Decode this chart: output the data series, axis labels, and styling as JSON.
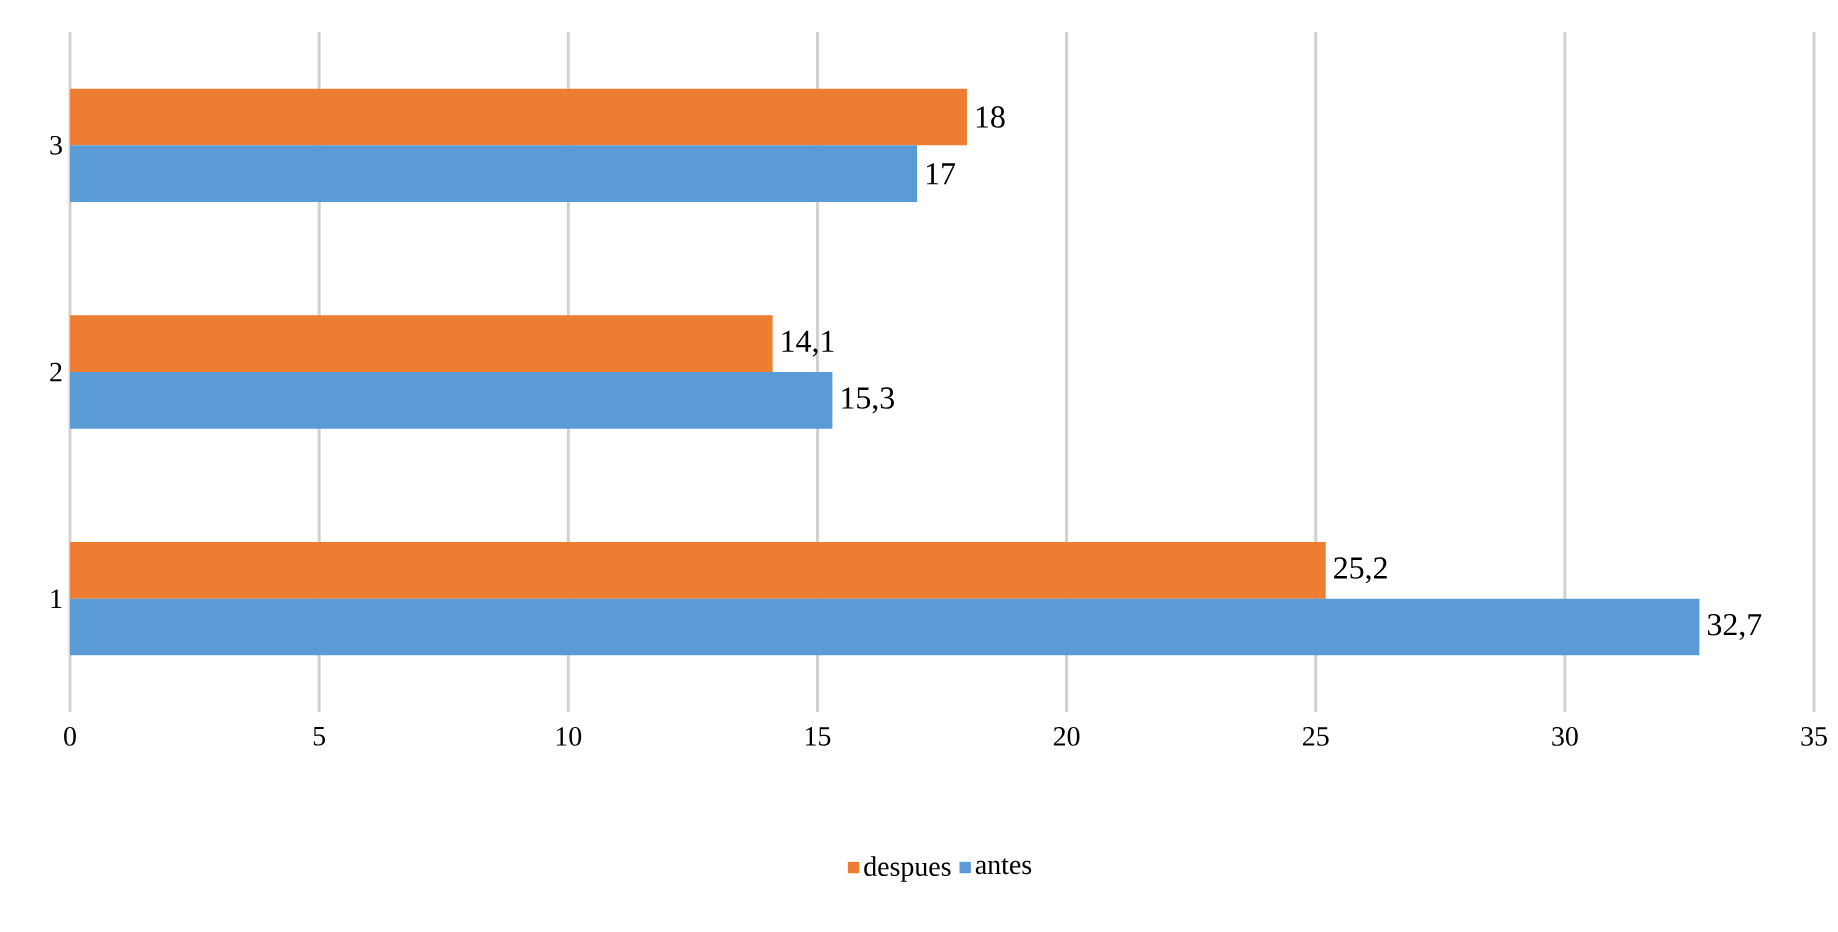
{
  "chart_data": {
    "type": "bar",
    "orientation": "horizontal",
    "categories": [
      "3",
      "2",
      "1"
    ],
    "series": [
      {
        "name": "despues",
        "color": "#ed7d31",
        "values": [
          18,
          14.1,
          25.2
        ],
        "value_labels": [
          "18",
          "14,1",
          "25,2"
        ]
      },
      {
        "name": "antes",
        "color": "#5b9bd5",
        "values": [
          17,
          15.3,
          32.7
        ],
        "value_labels": [
          "17",
          "15,3",
          "32,7"
        ]
      }
    ],
    "xlim": [
      0,
      35
    ],
    "xticks": [
      0,
      5,
      10,
      15,
      20,
      25,
      30,
      35
    ],
    "grid": "x",
    "legend": "bottom"
  }
}
